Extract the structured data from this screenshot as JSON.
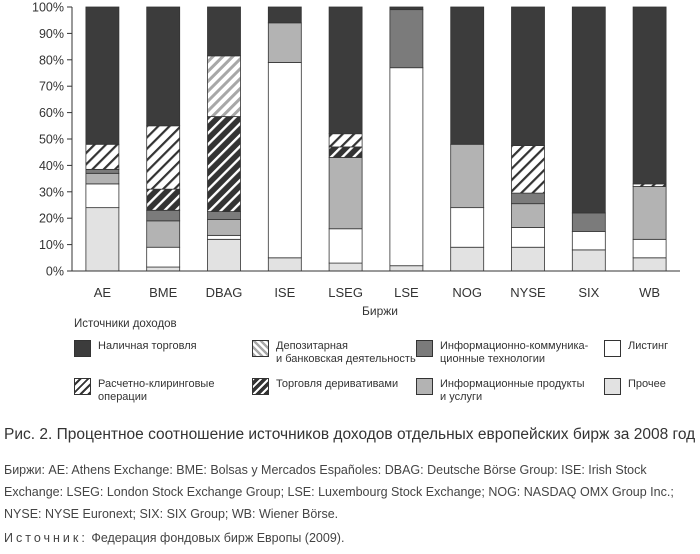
{
  "chart_data": {
    "type": "bar",
    "stacked": true,
    "percent": true,
    "categories": [
      "AE",
      "BME",
      "DBAG",
      "ISE",
      "LSEG",
      "LSE",
      "NOG",
      "NYSE",
      "SIX",
      "WB"
    ],
    "xlabel": "Биржи",
    "ylim": [
      0,
      100
    ],
    "yticks": [
      "0%",
      "10%",
      "20%",
      "30%",
      "40%",
      "50%",
      "60%",
      "70%",
      "80%",
      "90%",
      "100%"
    ],
    "legend_title": "Источники доходов",
    "series": [
      {
        "name": "Прочее",
        "pattern": "light",
        "values": [
          24,
          1.5,
          12,
          5,
          3,
          2,
          9,
          9,
          8,
          5
        ]
      },
      {
        "name": "Листинг",
        "pattern": "white",
        "values": [
          9,
          7.5,
          1.5,
          74,
          13,
          75,
          15,
          7.5,
          7,
          7
        ]
      },
      {
        "name": "Информационные продукты\nи услуги",
        "pattern": "mid",
        "values": [
          4,
          10,
          6,
          15,
          27,
          0,
          24,
          9,
          0,
          20
        ]
      },
      {
        "name": "Информационно-коммуника-\nционные технологии",
        "pattern": "dark",
        "values": [
          1.5,
          4,
          3,
          0,
          0,
          22,
          0,
          4,
          7,
          0
        ]
      },
      {
        "name": "Торговля деривативами",
        "pattern": "dense-hatch",
        "values": [
          0,
          8,
          36,
          0,
          4,
          0,
          0,
          0,
          0,
          0
        ]
      },
      {
        "name": "Расчетно-клиринговые\nоперации",
        "pattern": "hatch",
        "values": [
          9.5,
          24,
          0,
          0,
          5,
          0,
          0,
          18,
          0,
          1
        ]
      },
      {
        "name": "Депозитарная\nи банковская деятельность",
        "pattern": "light-hatch",
        "values": [
          0,
          0,
          23,
          0,
          0,
          0,
          0,
          0,
          0,
          0
        ]
      },
      {
        "name": "Наличная торговля",
        "pattern": "black",
        "values": [
          52,
          45,
          18.5,
          6,
          48,
          1,
          52,
          52.5,
          78,
          67
        ]
      }
    ],
    "stack_order_note": ""
  },
  "legend_items": [
    {
      "label": "Наличная торговля",
      "pattern": "black"
    },
    {
      "label": "Депозитарная\nи банковская деятельность",
      "pattern": "light-hatch"
    },
    {
      "label": "Информационно-коммуника-\nционные технологии",
      "pattern": "dark"
    },
    {
      "label": "Листинг",
      "pattern": "white"
    },
    {
      "label": "Расчетно-клиринговые\nоперации",
      "pattern": "hatch"
    },
    {
      "label": "Торговля деривативами",
      "pattern": "dense-hatch"
    },
    {
      "label": "Информационные продукты\nи услуги",
      "pattern": "mid"
    },
    {
      "label": "Прочее",
      "pattern": "light"
    }
  ],
  "patterns": {
    "black": "#3c3c3c",
    "dark": "#7b7b7b",
    "mid": "#b3b3b3",
    "light": "#e2e2e2",
    "white": "#ffffff",
    "stroke": "#333333"
  },
  "caption": {
    "prefix": "Рис. 2.",
    "text": "Процентное соотношение источников доходов отдельных европейских бирж за 2008 год"
  },
  "notes": "Биржи: AE: Athens Exchange: BME: Bolsas y Mercados Españoles: DBAG: Deutsche Börse Group: ISE: Irish Stock Exchange: LSEG: London Stock Exchange Group; LSE: Luxembourg Stock Exchange; NOG: NASDAQ OMX Group Inc.; NYSE: NYSE Euronext; SIX: SIX Group; WB: Wiener Börse.",
  "source": {
    "label": "Источник:",
    "text": "Федерация фондовых бирж Европы (2009)."
  }
}
